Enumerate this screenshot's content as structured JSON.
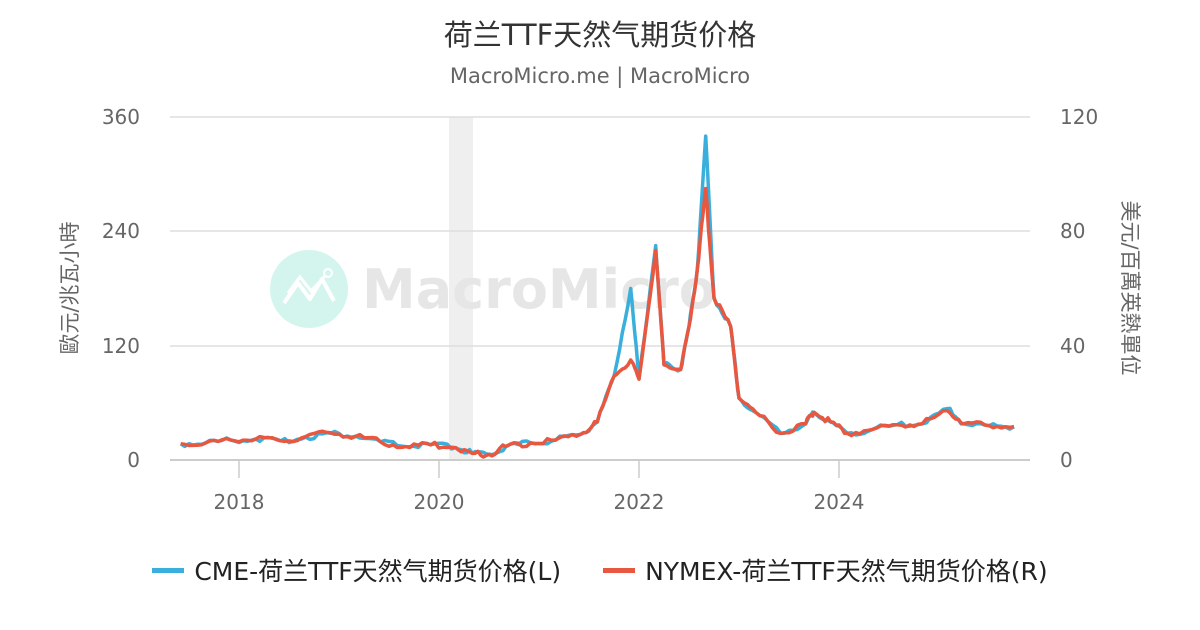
{
  "header": {
    "title": "荷兰TTF天然气期货价格",
    "subtitle": "MacroMicro.me | MacroMicro"
  },
  "watermark": {
    "text": "MacroMicro",
    "logo": "chart-line-logo-icon"
  },
  "axes": {
    "left_title": "歐元/兆瓦小時",
    "right_title": "美元/百萬英熱單位",
    "left_ticks": [
      "0",
      "120",
      "240",
      "360"
    ],
    "right_ticks": [
      "0",
      "40",
      "80",
      "120"
    ],
    "x_ticks": [
      "2018",
      "2020",
      "2022",
      "2024"
    ]
  },
  "legend": {
    "items": [
      {
        "label": "CME-荷兰TTF天然气期货价格(L)",
        "color": "#3aafdc"
      },
      {
        "label": "NYMEX-荷兰TTF天然气期货价格(R)",
        "color": "#e8573f"
      }
    ]
  },
  "chart_data": {
    "type": "line",
    "title": "荷兰TTF天然气期货价格",
    "subtitle": "MacroMicro.me | MacroMicro",
    "xlabel": "",
    "ylabel_left": "歐元/兆瓦小時",
    "ylabel_right": "美元/百萬英熱單位",
    "ylim_left": [
      0,
      360
    ],
    "ylim_right": [
      0,
      120
    ],
    "grid": true,
    "legend_position": "bottom",
    "shaded_regions": [
      {
        "start": "2020-02",
        "end": "2020-04"
      }
    ],
    "x": [
      "2017-06",
      "2017-09",
      "2017-12",
      "2018-03",
      "2018-06",
      "2018-09",
      "2018-12",
      "2019-03",
      "2019-06",
      "2019-09",
      "2019-12",
      "2020-03",
      "2020-05",
      "2020-07",
      "2020-09",
      "2020-12",
      "2021-03",
      "2021-06",
      "2021-08",
      "2021-10",
      "2021-12",
      "2022-01",
      "2022-03",
      "2022-04",
      "2022-06",
      "2022-07",
      "2022-08",
      "2022-09",
      "2022-10",
      "2022-12",
      "2023-01",
      "2023-03",
      "2023-06",
      "2023-09",
      "2023-10",
      "2023-12",
      "2024-02",
      "2024-05",
      "2024-08",
      "2024-11",
      "2025-02",
      "2025-04",
      "2025-07",
      "2025-10"
    ],
    "series": [
      {
        "name": "CME-荷兰TTF天然气期货价格(L)",
        "axis": "left",
        "color": "#3aafdc",
        "values": [
          17,
          18,
          21,
          22,
          20,
          24,
          28,
          25,
          19,
          14,
          16,
          13,
          7,
          6,
          14,
          18,
          21,
          27,
          40,
          88,
          180,
          85,
          225,
          100,
          95,
          140,
          200,
          340,
          170,
          140,
          65,
          50,
          28,
          38,
          50,
          40,
          28,
          32,
          37,
          38,
          54,
          38,
          36,
          35
        ]
      },
      {
        "name": "NYMEX-荷兰TTF天然气期货价格(R)",
        "axis": "right",
        "color": "#e8573f",
        "values": [
          5.7,
          6.0,
          7.0,
          7.3,
          6.7,
          8.2,
          9.5,
          8.3,
          6.3,
          4.7,
          5.3,
          4.3,
          2.3,
          2.0,
          4.7,
          6.0,
          7.0,
          9.0,
          13.3,
          29.3,
          35.0,
          28.3,
          73.3,
          33.3,
          31.7,
          46.7,
          66.7,
          95.0,
          56.7,
          46.7,
          21.7,
          16.7,
          9.3,
          12.7,
          16.7,
          13.3,
          9.3,
          10.7,
          12.3,
          12.7,
          17.3,
          12.7,
          12.0,
          11.7
        ]
      }
    ]
  }
}
